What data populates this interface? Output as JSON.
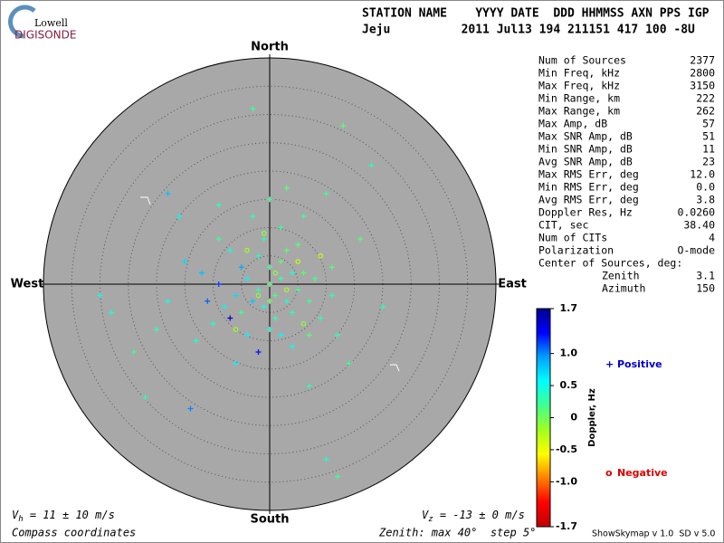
{
  "header": {
    "logo_top": "Lowell",
    "logo_bottom": "DIGISONDE",
    "line1": "STATION NAME    YYYY DATE  DDD HHMMSS AXN PPS IGP",
    "line2": "Jeju          2011 Jul13 194 211151 417 100 -8U"
  },
  "compass": {
    "north": "North",
    "south": "South",
    "west": "West",
    "east": "East"
  },
  "stats": [
    [
      "Num of Sources",
      "2377"
    ],
    [
      "Min Freq, kHz",
      "2800"
    ],
    [
      "Max Freq, kHz",
      "3150"
    ],
    [
      "Min Range, km",
      "222"
    ],
    [
      "Max Range, km",
      "262"
    ],
    [
      "Max Amp, dB",
      "57"
    ],
    [
      "Max SNR Amp, dB",
      "51"
    ],
    [
      "Min SNR Amp, dB",
      "11"
    ],
    [
      "Avg SNR Amp, dB",
      "23"
    ],
    [
      "Max RMS Err, deg",
      "12.0"
    ],
    [
      "Min RMS Err, deg",
      "0.0"
    ],
    [
      "Avg RMS Err, deg",
      "3.8"
    ],
    [
      "Doppler Res, Hz",
      "0.0260"
    ],
    [
      "CIT, sec",
      "38.40"
    ],
    [
      "Num of CITs",
      "4"
    ],
    [
      "Polarization",
      "O-mode"
    ]
  ],
  "center": {
    "title": "Center of Sources, deg:",
    "rows": [
      [
        "Zenith",
        "3.1"
      ],
      [
        "Azimuth",
        "150"
      ]
    ]
  },
  "colorbar": {
    "title": "Doppler, Hz",
    "lim": [
      -1.7,
      1.7
    ],
    "colormap": [
      "#000090",
      "#0000ff",
      "#00a0ff",
      "#00ffff",
      "#40ff90",
      "#a0ff20",
      "#ffff00",
      "#ff8000",
      "#ff0000",
      "#c00000"
    ],
    "ticks": [
      1.7,
      {
        "value": 1.0,
        "label": "1.0"
      },
      0.5,
      0,
      -0.5,
      {
        "value": -1.0,
        "label": "-1.0"
      },
      -1.7
    ]
  },
  "legend": {
    "positive": {
      "symbol": "+",
      "label": "Positive",
      "color": "#0000cc"
    },
    "negative": {
      "symbol": "o",
      "label": "Negative",
      "color": "#dd0000"
    }
  },
  "skymap": {
    "zenith_max": 40,
    "ring_step": 5,
    "points": [
      [
        -2,
        -1,
        0.3
      ],
      [
        1,
        -2,
        0.2
      ],
      [
        3,
        -3,
        0.4
      ],
      [
        0,
        0,
        0.1
      ],
      [
        -4,
        1,
        0.6
      ],
      [
        2,
        1,
        0.3
      ],
      [
        5,
        -1,
        0.2
      ],
      [
        -1,
        -4,
        0.5
      ],
      [
        4,
        -5,
        0.3
      ],
      [
        -3,
        -3,
        0.8
      ],
      [
        6,
        2,
        0.1
      ],
      [
        -6,
        -2,
        0.7
      ],
      [
        0,
        3,
        0.2
      ],
      [
        2,
        4,
        0.1
      ],
      [
        -2,
        5,
        0.4
      ],
      [
        1,
        -6,
        0.3
      ],
      [
        -5,
        3,
        0.9
      ],
      [
        7,
        -3,
        0.2
      ],
      [
        3,
        6,
        0.1
      ],
      [
        -8,
        -4,
        0.6
      ],
      [
        8,
        1,
        0.2
      ],
      [
        -1,
        8,
        0.3
      ],
      [
        0,
        -8,
        0.4
      ],
      [
        -9,
        0,
        1.2
      ],
      [
        5,
        7,
        0.1
      ],
      [
        -7,
        6,
        0.5
      ],
      [
        9,
        -6,
        0.3
      ],
      [
        -4,
        -9,
        0.6
      ],
      [
        2,
        10,
        0.2
      ],
      [
        -10,
        -7,
        0.4
      ],
      [
        11,
        3,
        0.1
      ],
      [
        -12,
        2,
        0.8
      ],
      [
        4,
        -11,
        0.5
      ],
      [
        -3,
        12,
        0.3
      ],
      [
        6,
        12,
        0.2
      ],
      [
        -13,
        -10,
        0.4
      ],
      [
        12,
        -9,
        0.3
      ],
      [
        -15,
        4,
        0.7
      ],
      [
        0,
        15,
        0.2
      ],
      [
        16,
        8,
        0.1
      ],
      [
        -18,
        -3,
        0.5
      ],
      [
        14,
        -14,
        0.2
      ],
      [
        -6,
        -14,
        0.6
      ],
      [
        -20,
        -8,
        0.3
      ],
      [
        7,
        -18,
        0.3
      ],
      [
        -28,
        -5,
        0.4
      ],
      [
        -24,
        -12,
        0.2
      ],
      [
        -22,
        -20,
        0.3
      ],
      [
        -30,
        -2,
        0.5
      ],
      [
        -3,
        31,
        0.2
      ],
      [
        13,
        28,
        0.1
      ],
      [
        18,
        21,
        0.3
      ],
      [
        12,
        -34,
        0.2
      ],
      [
        10,
        -31,
        0.4
      ],
      [
        -14,
        -22,
        1.0
      ],
      [
        -18,
        16,
        0.8
      ],
      [
        -9,
        14,
        0.3
      ],
      [
        10,
        16,
        0.2
      ],
      [
        3,
        17,
        0.1
      ],
      [
        -16,
        12,
        0.6
      ],
      [
        20,
        -4,
        0.3
      ],
      [
        -2,
        -12,
        1.3
      ],
      [
        -7,
        -6,
        1.5
      ],
      [
        -11,
        -3,
        1.1
      ],
      [
        1,
        2,
        -0.1
      ],
      [
        3,
        -1,
        -0.2
      ],
      [
        -2,
        -2,
        -0.1
      ],
      [
        5,
        4,
        -0.3
      ],
      [
        -4,
        6,
        -0.2
      ],
      [
        6,
        -7,
        -0.1
      ],
      [
        -6,
        -8,
        -0.2
      ],
      [
        9,
        5,
        -0.3
      ],
      [
        -1,
        9,
        -0.1
      ],
      [
        0,
        -3,
        0.0
      ],
      [
        2,
        -9,
        0.6
      ],
      [
        -5,
        -5,
        0.2
      ],
      [
        4,
        2,
        0.4
      ],
      [
        7,
        -9,
        0.1
      ],
      [
        -9,
        8,
        0.2
      ],
      [
        11,
        -2,
        0.3
      ]
    ]
  },
  "footer": {
    "vh": {
      "v": "V",
      "sub": "h",
      "rest": " = 11 ± 10 m/s"
    },
    "vz": {
      "v": "V",
      "sub": "z",
      "rest": " = -13 ± 0 m/s"
    },
    "coords": "Compass coordinates",
    "zenith": "Zenith: max 40°  step 5°",
    "version": "ShowSkymap v 1.0  SD v 5.0"
  }
}
